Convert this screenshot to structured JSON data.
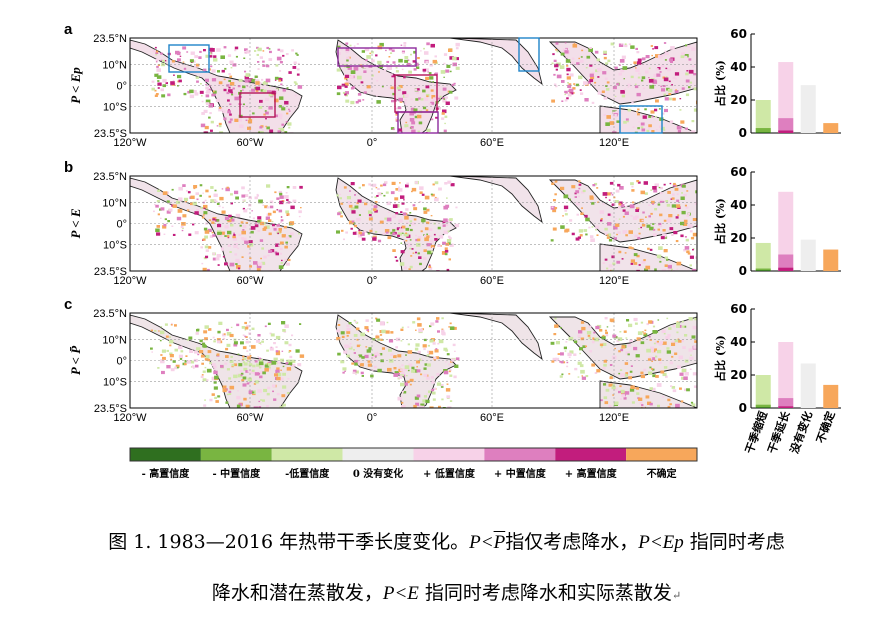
{
  "figure": {
    "panels": [
      {
        "letter": "a",
        "ylabel": "P < Ep"
      },
      {
        "letter": "b",
        "ylabel": "P < E"
      },
      {
        "letter": "c",
        "ylabel": "P < P̄"
      }
    ],
    "map_lat_ticks": [
      "23.5°N",
      "10°N",
      "0°",
      "10°S",
      "23.5°S"
    ],
    "map_lon_ticks": [
      "120°W",
      "60°W",
      "0°",
      "60°E",
      "120°E"
    ],
    "bar_ylabel": "占比 (%)",
    "bar_categories": [
      "干季缩短",
      "干季延长",
      "没有变化",
      "不确定"
    ],
    "legend_items": [
      "- 高置信度",
      "- 中置信度",
      "-低置信度",
      "0 没有变化",
      "+ 低置信度",
      "+ 中置信度",
      "+ 高置信度",
      "不确定"
    ],
    "legend_colors": [
      "#2f6f1f",
      "#79b541",
      "#cfe8a6",
      "#eeeeee",
      "#f7d2e8",
      "#de7fbf",
      "#c21d7d",
      "#f7a75b"
    ]
  },
  "chart_data": [
    {
      "type": "bar",
      "panel": "a",
      "categories": [
        "干季缩短",
        "干季延长",
        "没有变化",
        "不确定"
      ],
      "ylim": [
        0,
        60
      ],
      "yticks": [
        0,
        20,
        40,
        60
      ],
      "series": [
        {
          "values": [
            20,
            43,
            29,
            6
          ]
        },
        {
          "values": [
            3,
            9,
            0,
            0
          ]
        },
        {
          "values": [
            0.5,
            1.5,
            0,
            0
          ]
        }
      ]
    },
    {
      "type": "bar",
      "panel": "b",
      "categories": [
        "干季缩短",
        "干季延长",
        "没有变化",
        "不确定"
      ],
      "ylim": [
        0,
        60
      ],
      "yticks": [
        0,
        20,
        40,
        60
      ],
      "series": [
        {
          "values": [
            17,
            48,
            19,
            13
          ]
        },
        {
          "values": [
            1.5,
            10,
            0,
            0
          ]
        },
        {
          "values": [
            0.5,
            2,
            0,
            0
          ]
        }
      ]
    },
    {
      "type": "bar",
      "panel": "c",
      "categories": [
        "干季缩短",
        "干季延长",
        "没有变化",
        "不确定"
      ],
      "ylim": [
        0,
        60
      ],
      "yticks": [
        0,
        20,
        40,
        60
      ],
      "series": [
        {
          "values": [
            20,
            40,
            27,
            14
          ]
        },
        {
          "values": [
            2,
            6,
            0,
            0
          ]
        },
        {
          "values": [
            0.5,
            1,
            0,
            0
          ]
        }
      ]
    }
  ],
  "caption": {
    "line1_pre": "图 1. 1983—2016 年热带干季长度变化。",
    "c1": "P<",
    "pbar": "P",
    "t1": "指仅考虑降水，",
    "c2": "P<Ep",
    "t2": " 指同时考虑",
    "t3": "降水和潜在蒸散发，",
    "c3": "P<E",
    "t4": " 指同时考虑降水和实际蒸散发",
    "end_mark": "↵"
  }
}
